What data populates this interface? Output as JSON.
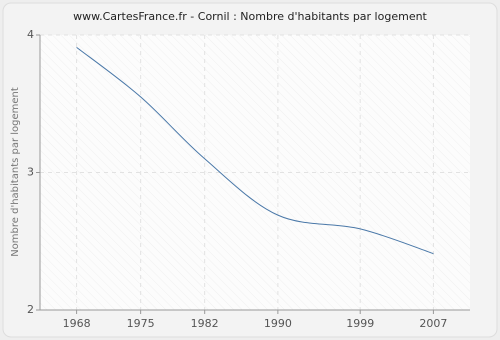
{
  "chart_data": {
    "type": "line",
    "title": "www.CartesFrance.fr - Cornil : Nombre d'habitants par logement",
    "y_label": "Nombre d'habitants par logement",
    "x": [
      1968,
      1975,
      1982,
      1990,
      1999,
      2007
    ],
    "series": [
      {
        "name": "Cornil",
        "color": "#4a78a8",
        "values": [
          3.91,
          3.55,
          3.1,
          2.69,
          2.59,
          2.41
        ]
      }
    ],
    "xlim": [
      1964,
      2011
    ],
    "xticks": [
      1968,
      1975,
      1982,
      1990,
      1999,
      2007
    ],
    "ylim": [
      2,
      4
    ],
    "yticks": [
      2,
      3,
      4
    ],
    "grid": true
  }
}
